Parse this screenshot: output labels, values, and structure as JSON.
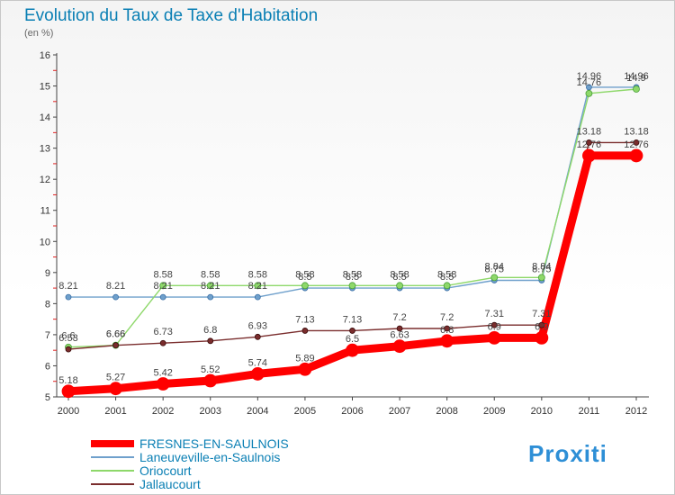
{
  "page": {
    "title": "Evolution du Taux de Taxe d'Habitation",
    "subtitle": "(en %)",
    "logo_text": "Proxiti"
  },
  "chart_data": {
    "type": "line",
    "title": "Evolution du Taux de Taxe d'Habitation",
    "subtitle": "(en %)",
    "xlabel": "",
    "ylabel": "",
    "ylim": [
      5,
      16
    ],
    "y_ticks": [
      5,
      6,
      7,
      8,
      9,
      10,
      11,
      12,
      13,
      14,
      15,
      16
    ],
    "grid": false,
    "legend_position": "bottom-left",
    "x": [
      "2000",
      "2001",
      "2002",
      "2003",
      "2004",
      "2005",
      "2006",
      "2007",
      "2008",
      "2009",
      "2010",
      "2011",
      "2012"
    ],
    "series": [
      {
        "name": "FRESNES-EN-SAULNOIS",
        "color": "#ff0000",
        "values": [
          5.18,
          5.27,
          5.42,
          5.52,
          5.74,
          5.89,
          6.5,
          6.63,
          6.8,
          6.9,
          6.9,
          12.76,
          12.76
        ],
        "labels": [
          "5.18",
          "5.27",
          "5.42",
          "5.52",
          "5.74",
          "5.89",
          "6.5",
          "6.63",
          "6.8",
          "6.9",
          "6.9",
          "12.76",
          "12.76"
        ]
      },
      {
        "name": "Laneuveville-en-Saulnois",
        "color": "#6fa0cc",
        "values": [
          8.21,
          8.21,
          8.21,
          8.21,
          8.21,
          8.5,
          8.5,
          8.5,
          8.5,
          8.75,
          8.75,
          14.96,
          14.96
        ],
        "labels": [
          "8.21",
          "8.21",
          "8.21",
          "8.21",
          "8.21",
          "8.5",
          "8.5",
          "8.5",
          "8.5",
          "8.75",
          "8.75",
          "14.96",
          "14.96"
        ]
      },
      {
        "name": "Oriocourt",
        "color": "#8ed86a",
        "values": [
          6.6,
          6.66,
          8.58,
          8.58,
          8.58,
          8.58,
          8.58,
          8.58,
          8.58,
          8.84,
          8.84,
          14.76,
          14.9
        ],
        "labels": [
          "6.6",
          "6.66",
          "8.58",
          "8.58",
          "8.58",
          "8.58",
          "8.58",
          "8.58",
          "8.58",
          "8.84",
          "8.84",
          "14.76",
          "14.9"
        ]
      },
      {
        "name": "Jallaucourt",
        "color": "#7a2d2d",
        "values": [
          6.53,
          6.66,
          6.73,
          6.8,
          6.93,
          7.13,
          7.13,
          7.2,
          7.2,
          7.31,
          7.31,
          13.18,
          13.18
        ],
        "labels": [
          "6.53",
          "6.66",
          "6.73",
          "6.8",
          "6.93",
          "7.13",
          "7.13",
          "7.2",
          "7.2",
          "7.31",
          "7.31",
          "13.18",
          "13.18"
        ]
      }
    ]
  }
}
